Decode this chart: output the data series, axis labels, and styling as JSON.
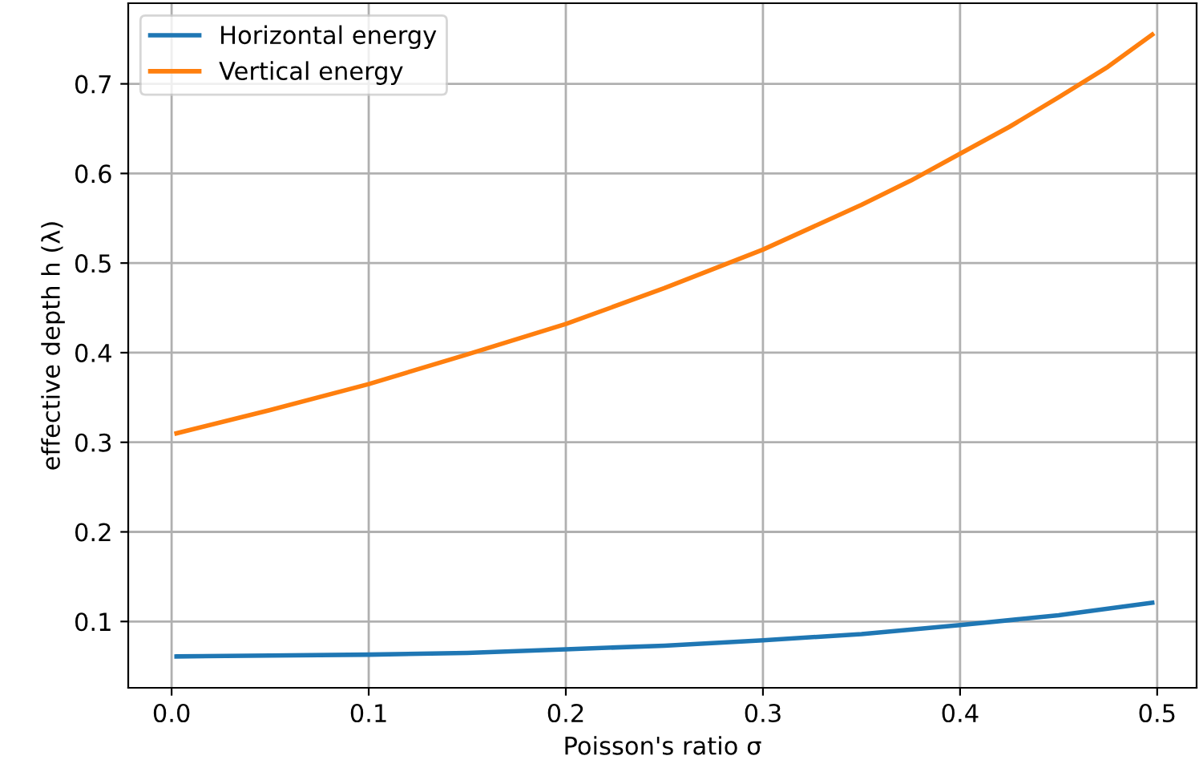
{
  "chart_data": {
    "type": "line",
    "xlabel": "Poisson's ratio σ",
    "ylabel": "effective depth h (λ)",
    "xlim": [
      -0.022,
      0.52
    ],
    "ylim": [
      0.026,
      0.79
    ],
    "xticks": [
      {
        "value": 0,
        "label": "0.0"
      },
      0.1,
      0.2,
      0.3,
      0.4,
      0.5
    ],
    "yticks": [
      0.1,
      0.2,
      0.3,
      0.4,
      0.5,
      0.6,
      0.7
    ],
    "grid": true,
    "legend": "top left",
    "series": [
      {
        "name": "Horizontal energy",
        "color": "#1f77b4",
        "x": [
          0.0025,
          0.05,
          0.1,
          0.15,
          0.2,
          0.25,
          0.3,
          0.35,
          0.4,
          0.45,
          0.4975
        ],
        "values": [
          0.061,
          0.062,
          0.063,
          0.065,
          0.069,
          0.073,
          0.079,
          0.086,
          0.096,
          0.107,
          0.121
        ]
      },
      {
        "name": "Vertical energy",
        "color": "#ff7f0e",
        "x": [
          0.0025,
          0.05,
          0.1,
          0.15,
          0.2,
          0.25,
          0.3,
          0.35,
          0.375,
          0.4,
          0.425,
          0.45,
          0.475,
          0.4975
        ],
        "values": [
          0.31,
          0.336,
          0.365,
          0.398,
          0.432,
          0.472,
          0.515,
          0.565,
          0.592,
          0.622,
          0.652,
          0.685,
          0.719,
          0.755
        ]
      }
    ]
  }
}
